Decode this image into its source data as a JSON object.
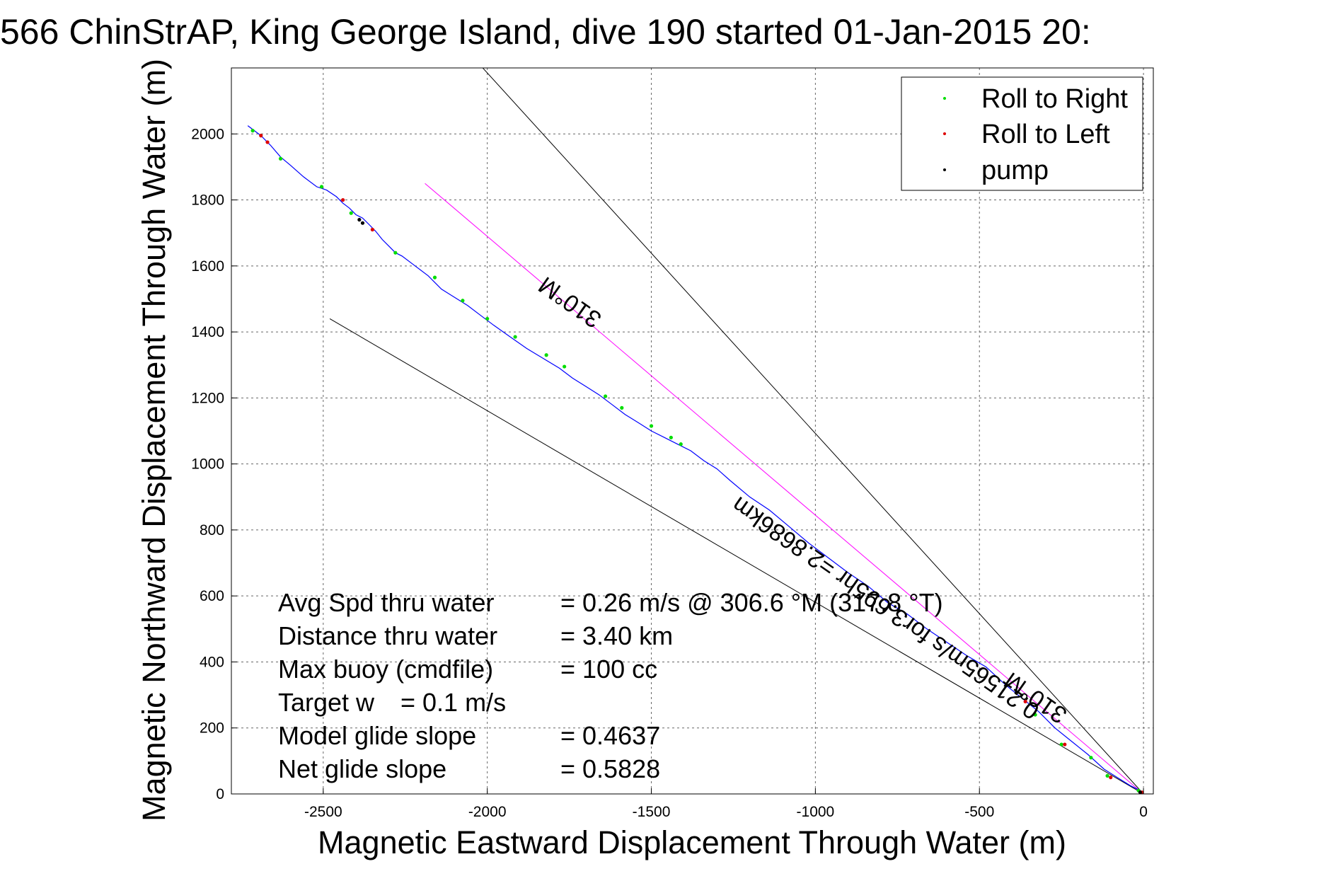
{
  "chart_data": {
    "type": "line",
    "title": "566 ChinStrAP, King George Island, dive 190 started 01-Jan-2015 20:",
    "xlabel": "Magnetic Eastward Displacement Through Water (m)",
    "ylabel": "Magnetic Northward Displacement Through Water (m)",
    "xlim": [
      -2780,
      30
    ],
    "ylim": [
      0,
      2200
    ],
    "xticks": [
      -2500,
      -2000,
      -1500,
      -1000,
      -500,
      0
    ],
    "yticks": [
      0,
      200,
      400,
      600,
      800,
      1000,
      1200,
      1400,
      1600,
      1800,
      2000
    ],
    "xtick_labels": [
      "-2500",
      "-2000",
      "-1500",
      "-1000",
      "-500",
      "0"
    ],
    "ytick_labels": [
      "0",
      "200",
      "400",
      "600",
      "800",
      "1000",
      "1200",
      "1400",
      "1600",
      "1800",
      "2000"
    ],
    "grid": true,
    "legend_position": "top-right",
    "legend": [
      {
        "label": "Roll to Right",
        "color": "#00dd00"
      },
      {
        "label": "Roll to Left",
        "color": "#dd0000"
      },
      {
        "label": "pump",
        "color": "#000000"
      }
    ],
    "track": {
      "color": "#0000ff",
      "x": [
        -2730,
        -2690,
        -2660,
        -2630,
        -2600,
        -2560,
        -2520,
        -2490,
        -2460,
        -2440,
        -2420,
        -2400,
        -2380,
        -2360,
        -2340,
        -2320,
        -2300,
        -2280,
        -2260,
        -2220,
        -2180,
        -2140,
        -2100,
        -2060,
        -2020,
        -1980,
        -1930,
        -1880,
        -1830,
        -1780,
        -1740,
        -1700,
        -1660,
        -1620,
        -1580,
        -1540,
        -1500,
        -1460,
        -1420,
        -1380,
        -1340,
        -1300,
        -1260,
        -1200,
        -1140,
        -1080,
        -1020,
        -960,
        -900,
        -840,
        -780,
        -720,
        -660,
        -600,
        -540,
        -480,
        -420,
        -370,
        -320,
        -270,
        -220,
        -170,
        -120,
        -80,
        -40,
        -10,
        0
      ],
      "y": [
        2025,
        1995,
        1965,
        1930,
        1905,
        1870,
        1840,
        1830,
        1810,
        1790,
        1775,
        1755,
        1745,
        1725,
        1705,
        1680,
        1660,
        1640,
        1630,
        1600,
        1570,
        1530,
        1505,
        1480,
        1450,
        1420,
        1385,
        1350,
        1320,
        1290,
        1260,
        1235,
        1210,
        1180,
        1150,
        1125,
        1100,
        1080,
        1060,
        1040,
        1010,
        985,
        950,
        900,
        860,
        810,
        760,
        715,
        670,
        630,
        580,
        545,
        500,
        460,
        420,
        385,
        330,
        290,
        250,
        200,
        160,
        120,
        75,
        50,
        25,
        10,
        0
      ]
    },
    "roll_right": {
      "x": [
        -2715,
        -2630,
        -2505,
        -2415,
        -2280,
        -2160,
        -2075,
        -2000,
        -1915,
        -1820,
        -1765,
        -1640,
        -1590,
        -1500,
        -1440,
        -1410,
        -330,
        -250,
        -160,
        -110,
        -15
      ],
      "y": [
        2010,
        1925,
        1840,
        1760,
        1640,
        1565,
        1495,
        1440,
        1385,
        1330,
        1295,
        1205,
        1170,
        1115,
        1080,
        1060,
        240,
        150,
        110,
        55,
        10
      ]
    },
    "roll_left": {
      "x": [
        -2690,
        -2670,
        -2440,
        -2350,
        -360,
        -240,
        -100,
        -5
      ],
      "y": [
        1995,
        1975,
        1800,
        1710,
        280,
        150,
        50,
        5
      ]
    },
    "pump": {
      "x": [
        -2390,
        -2380,
        -10
      ],
      "y": [
        1740,
        1730,
        5
      ]
    },
    "reference_lines": [
      {
        "name": "bound-upper",
        "color": "#000000",
        "x": [
          -2380,
          0
        ],
        "y": [
          2600,
          0
        ]
      },
      {
        "name": "bound-lower",
        "color": "#000000",
        "x": [
          -2480,
          0
        ],
        "y": [
          1440,
          0
        ]
      },
      {
        "name": "heading-line",
        "color": "#ff00ff",
        "x": [
          -2190,
          0
        ],
        "y": [
          1850,
          0
        ]
      }
    ],
    "annotations": [
      "310°M",
      "0.21565m/s for3.695hr =2.8686km",
      "310°M"
    ],
    "stats": [
      {
        "label": "Avg Spd thru water",
        "value": "=  0.26 m/s @ 306.6 °M (317.8 °T)"
      },
      {
        "label": "Distance thru water",
        "value": "=  3.40 km"
      },
      {
        "label": "Max buoy (cmdfile)",
        "value": "= 100 cc"
      },
      {
        "label": "Target w",
        "value": "= 0.1 m/s"
      },
      {
        "label": "Model glide slope",
        "value": "= 0.4637"
      },
      {
        "label": "Net glide slope",
        "value": "= 0.5828"
      }
    ]
  }
}
